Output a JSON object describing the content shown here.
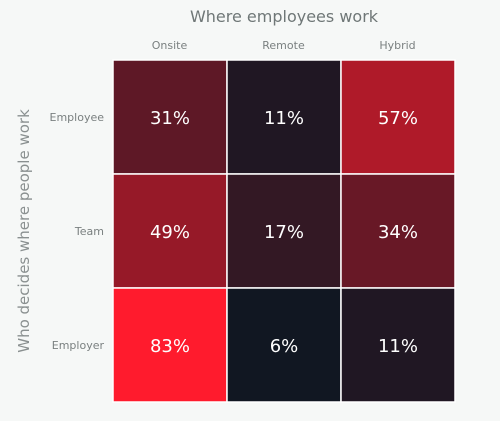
{
  "chart_data": {
    "type": "heatmap",
    "title": "Where employees work",
    "xlabel": "Where employees work",
    "ylabel": "Who decides where people work",
    "columns": [
      "Onsite",
      "Remote",
      "Hybrid"
    ],
    "rows": [
      "Employee",
      "Team",
      "Employer"
    ],
    "values": [
      [
        31,
        11,
        57
      ],
      [
        49,
        17,
        34
      ],
      [
        83,
        6,
        11
      ]
    ],
    "value_suffix": "%",
    "color_scale": {
      "low": "#111722",
      "high": "#ff1b2d"
    },
    "value_label_color": "#ffffff",
    "cell_border_color": "#ffffff",
    "legend": "none",
    "grid": false
  }
}
